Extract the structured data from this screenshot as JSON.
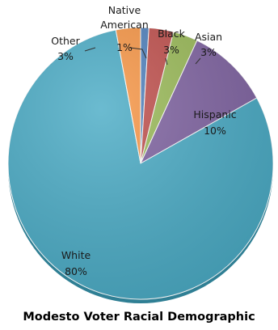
{
  "chart_data": {
    "type": "pie",
    "title": "Modesto Voter Racial Demographic",
    "categories": [
      "Native American",
      "Black",
      "Asian",
      "Hispanic",
      "White",
      "Other"
    ],
    "values": [
      1,
      3,
      3,
      10,
      80,
      3
    ],
    "labels": {
      "native": [
        "Native",
        "American",
        "1%"
      ],
      "black": [
        "Black",
        "3%"
      ],
      "asian": [
        "Asian",
        "3%"
      ],
      "hispanic": [
        "Hispanic",
        "10%"
      ],
      "white": [
        "White",
        "80%"
      ],
      "other": [
        "Other",
        "3%"
      ]
    },
    "colors": [
      "#4F81BD",
      "#C0504D",
      "#9BBB59",
      "#8064A2",
      "#4BACC6",
      "#F79646"
    ],
    "legend": "none",
    "data_labels": "outside-with-leaders"
  }
}
